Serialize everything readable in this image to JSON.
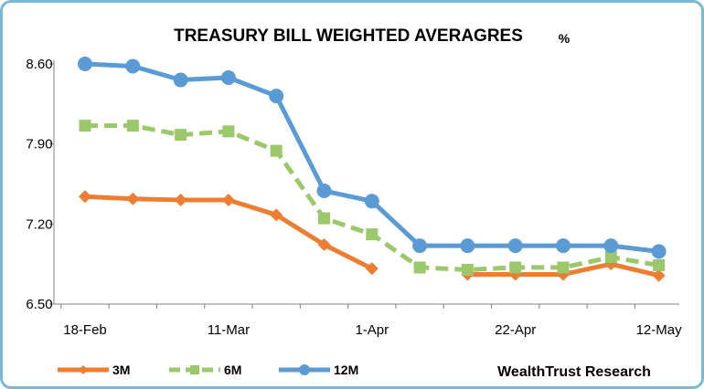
{
  "chart_data": {
    "type": "line",
    "title": "TREASURY BILL WEIGHTED AVERAGRES",
    "unit_label": "%",
    "credit": "WealthTrust Research",
    "xlabel": "",
    "ylabel": "",
    "ylim": [
      6.5,
      8.6
    ],
    "yticks": [
      "8.60",
      "7.90",
      "7.20",
      "6.50"
    ],
    "ytick_values": [
      8.6,
      7.9,
      7.2,
      6.5
    ],
    "x": [
      "18-Feb",
      "25-Feb",
      "4-Mar",
      "11-Mar",
      "18-Mar",
      "25-Mar",
      "1-Apr",
      "8-Apr",
      "15-Apr",
      "22-Apr",
      "29-Apr",
      "6-May",
      "12-May"
    ],
    "xtick_labels": [
      "18-Feb",
      "11-Mar",
      "1-Apr",
      "22-Apr",
      "12-May"
    ],
    "xtick_indices": [
      0,
      3,
      6,
      9,
      12
    ],
    "grid": false,
    "legend_position": "bottom-left",
    "series": [
      {
        "name": "3M",
        "color": "#ed7d31",
        "style": "solid",
        "marker": "diamond",
        "values": [
          7.44,
          7.42,
          7.41,
          7.41,
          7.28,
          7.02,
          6.81,
          null,
          6.76,
          6.76,
          6.76,
          6.85,
          6.75
        ]
      },
      {
        "name": "6M",
        "color": "#9bc86a",
        "style": "dashed",
        "marker": "square",
        "values": [
          8.06,
          8.06,
          7.98,
          8.01,
          7.84,
          7.25,
          7.11,
          6.82,
          6.8,
          6.82,
          6.82,
          6.91,
          6.84
        ]
      },
      {
        "name": "12M",
        "color": "#5b9bd5",
        "style": "solid",
        "marker": "circle",
        "values": [
          8.6,
          8.58,
          8.46,
          8.48,
          8.32,
          7.49,
          7.4,
          7.01,
          7.01,
          7.01,
          7.01,
          7.01,
          6.96
        ]
      }
    ]
  }
}
